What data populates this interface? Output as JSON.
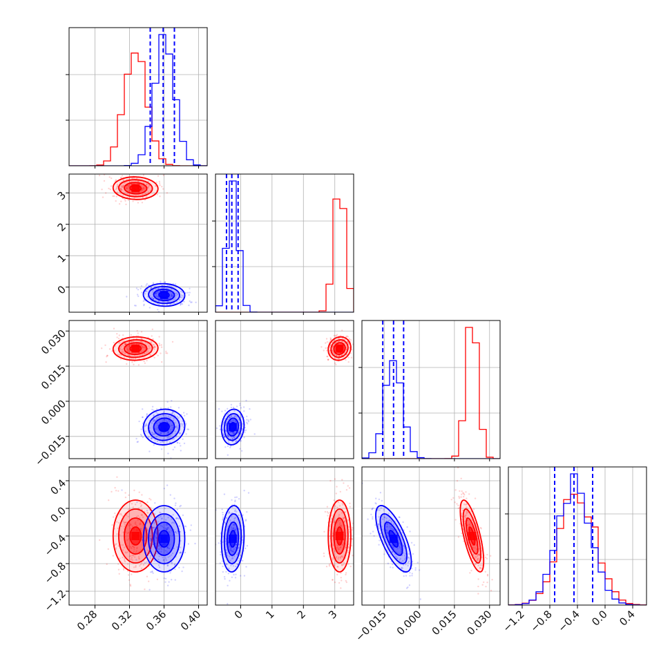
{
  "chart_data": {
    "type": "corner",
    "n_params": 4,
    "grid": true,
    "colors": {
      "red": "#ff0000",
      "blue": "#0000ff",
      "grid": "#b0b0b0",
      "frame": "#000000"
    },
    "series": [
      {
        "color": "red",
        "mean": [
          0.327,
          3.15,
          0.0225,
          -0.4
        ],
        "sd": [
          0.013,
          0.18,
          0.0025,
          0.26
        ]
      },
      {
        "color": "blue",
        "mean": [
          0.36,
          -0.25,
          -0.011,
          -0.44
        ],
        "sd": [
          0.012,
          0.18,
          0.0038,
          0.24
        ]
      }
    ],
    "params": [
      {
        "range": [
          0.25,
          0.41
        ],
        "ticks": [
          0.28,
          0.32,
          0.36,
          0.4
        ],
        "tick_labels": [
          "0.28",
          "0.32",
          "0.36",
          "0.40"
        ]
      },
      {
        "range": [
          -0.8,
          3.6
        ],
        "ticks": [
          0,
          1,
          2,
          3
        ],
        "tick_labels": [
          "0",
          "1",
          "2",
          "3"
        ]
      },
      {
        "range": [
          -0.0245,
          0.0345
        ],
        "ticks": [
          -0.015,
          0.0,
          0.015,
          0.03
        ],
        "tick_labels": [
          "−0.015",
          "0.000",
          "0.015",
          "0.030"
        ]
      },
      {
        "range": [
          -1.4,
          0.6
        ],
        "ticks": [
          -1.2,
          -0.8,
          -0.4,
          0.0,
          0.4
        ],
        "tick_labels": [
          "−1.2",
          "−0.8",
          "−0.4",
          "0.0",
          "0.4"
        ]
      }
    ],
    "quantile_lines": [
      {
        "param": 0,
        "values": [
          0.344,
          0.359,
          0.372
        ]
      },
      {
        "param": 1,
        "values": [
          -0.45,
          -0.28,
          -0.08
        ]
      },
      {
        "param": 2,
        "values": [
          -0.0156,
          -0.011,
          -0.0067
        ]
      },
      {
        "param": 3,
        "values": [
          -0.73,
          -0.45,
          -0.18
        ]
      }
    ]
  }
}
